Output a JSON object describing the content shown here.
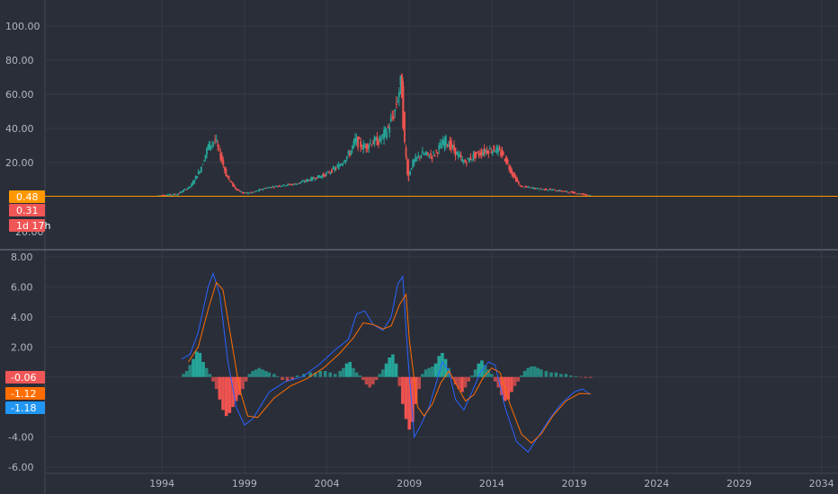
{
  "chart_data": [
    {
      "type": "candlestick",
      "ylim": [
        -5,
        110
      ],
      "y_ticks": [
        "100.00",
        "80.00",
        "60.00",
        "40.00",
        "20.00"
      ],
      "y_tick_values": [
        100,
        80,
        60,
        40,
        20
      ],
      "partial_tick": "20.00",
      "price_line": 0.48,
      "price_labels": [
        "0.48",
        "0.31",
        "1d 17h"
      ],
      "price_label_colors": [
        "#ff9800",
        "#f05656",
        "#f05656"
      ],
      "up_color": "#26a69a",
      "down_color": "#ef5350",
      "envelope": [
        [
          1993.8,
          0.6
        ],
        [
          1995.0,
          1.5
        ],
        [
          1995.8,
          6
        ],
        [
          1996.4,
          16
        ],
        [
          1996.9,
          30
        ],
        [
          1997.3,
          33
        ],
        [
          1997.7,
          22
        ],
        [
          1998.0,
          12
        ],
        [
          1998.5,
          5
        ],
        [
          1999.0,
          2
        ],
        [
          1999.6,
          2.5
        ],
        [
          2000.3,
          5
        ],
        [
          2001.2,
          6.5
        ],
        [
          2002.2,
          7.5
        ],
        [
          2003.0,
          10
        ],
        [
          2004.0,
          13
        ],
        [
          2004.8,
          18
        ],
        [
          2005.5,
          26
        ],
        [
          2005.8,
          33
        ],
        [
          2006.3,
          29
        ],
        [
          2006.8,
          32
        ],
        [
          2007.3,
          33
        ],
        [
          2007.8,
          40
        ],
        [
          2008.2,
          50
        ],
        [
          2008.5,
          64
        ],
        [
          2008.6,
          68
        ],
        [
          2008.8,
          30
        ],
        [
          2009.0,
          12
        ],
        [
          2009.3,
          20
        ],
        [
          2009.8,
          25
        ],
        [
          2010.5,
          24
        ],
        [
          2011.0,
          30
        ],
        [
          2011.3,
          33
        ],
        [
          2011.8,
          27
        ],
        [
          2012.4,
          20
        ],
        [
          2013.0,
          24
        ],
        [
          2013.7,
          27
        ],
        [
          2014.3,
          28
        ],
        [
          2014.8,
          24
        ],
        [
          2015.3,
          14
        ],
        [
          2015.8,
          6
        ],
        [
          2016.3,
          5.5
        ],
        [
          2017.0,
          4.5
        ],
        [
          2017.8,
          4
        ],
        [
          2018.5,
          3
        ],
        [
          2019.3,
          2
        ],
        [
          2020.0,
          0.8
        ]
      ]
    },
    {
      "type": "macd",
      "ylim": [
        -6.2,
        8.2
      ],
      "y_ticks": [
        "8.00",
        "6.00",
        "4.00",
        "2.00",
        "-4.00",
        "-6.00"
      ],
      "y_tick_values": [
        8,
        6,
        4,
        2,
        -4,
        -6
      ],
      "value_labels": [
        "-0.06",
        "-1.12",
        "-1.18"
      ],
      "value_label_colors": [
        "#f05656",
        "#ff6d00",
        "#2196f3"
      ],
      "series": [
        {
          "color": "#2962ff",
          "points": [
            [
              1995.2,
              1.2
            ],
            [
              1995.7,
              1.5
            ],
            [
              1996.2,
              3.0
            ],
            [
              1996.8,
              6.0
            ],
            [
              1997.1,
              6.9
            ],
            [
              1997.5,
              5.5
            ],
            [
              1998.0,
              1.0
            ],
            [
              1998.5,
              -2.0
            ],
            [
              1999.0,
              -3.2
            ],
            [
              1999.5,
              -2.8
            ],
            [
              2000.5,
              -1.0
            ],
            [
              2001.5,
              -0.3
            ],
            [
              2002.5,
              0.0
            ],
            [
              2003.5,
              0.8
            ],
            [
              2004.5,
              1.8
            ],
            [
              2005.3,
              2.5
            ],
            [
              2005.8,
              4.2
            ],
            [
              2006.3,
              4.4
            ],
            [
              2006.8,
              3.5
            ],
            [
              2007.4,
              3.1
            ],
            [
              2007.9,
              4.0
            ],
            [
              2008.3,
              6.2
            ],
            [
              2008.6,
              6.7
            ],
            [
              2008.9,
              1.5
            ],
            [
              2009.3,
              -4.0
            ],
            [
              2009.7,
              -3.2
            ],
            [
              2010.2,
              -2.0
            ],
            [
              2010.6,
              -0.5
            ],
            [
              2011.0,
              1.0
            ],
            [
              2011.4,
              0.4
            ],
            [
              2011.8,
              -1.5
            ],
            [
              2012.3,
              -2.2
            ],
            [
              2012.8,
              -1.0
            ],
            [
              2013.3,
              0.3
            ],
            [
              2013.8,
              1.0
            ],
            [
              2014.2,
              0.8
            ],
            [
              2014.8,
              -2.0
            ],
            [
              2015.5,
              -4.3
            ],
            [
              2016.2,
              -5.0
            ],
            [
              2016.8,
              -4.0
            ],
            [
              2017.5,
              -2.8
            ],
            [
              2018.2,
              -1.8
            ],
            [
              2019.0,
              -1.0
            ],
            [
              2019.5,
              -0.8
            ],
            [
              2020.0,
              -1.18
            ]
          ]
        },
        {
          "color": "#ff6d00",
          "points": [
            [
              1995.6,
              1.0
            ],
            [
              1996.2,
              2.0
            ],
            [
              1996.8,
              4.5
            ],
            [
              1997.3,
              6.3
            ],
            [
              1997.7,
              5.8
            ],
            [
              1998.2,
              2.5
            ],
            [
              1998.7,
              -0.8
            ],
            [
              1999.2,
              -2.6
            ],
            [
              1999.8,
              -2.7
            ],
            [
              2000.8,
              -1.4
            ],
            [
              2001.8,
              -0.6
            ],
            [
              2002.8,
              -0.1
            ],
            [
              2003.8,
              0.6
            ],
            [
              2004.8,
              1.6
            ],
            [
              2005.6,
              2.6
            ],
            [
              2006.2,
              3.6
            ],
            [
              2006.8,
              3.5
            ],
            [
              2007.4,
              3.2
            ],
            [
              2007.9,
              3.4
            ],
            [
              2008.4,
              4.8
            ],
            [
              2008.8,
              5.5
            ],
            [
              2009.0,
              2.5
            ],
            [
              2009.5,
              -2.0
            ],
            [
              2009.9,
              -2.6
            ],
            [
              2010.4,
              -1.8
            ],
            [
              2010.9,
              -0.4
            ],
            [
              2011.4,
              0.4
            ],
            [
              2011.9,
              -0.6
            ],
            [
              2012.4,
              -1.6
            ],
            [
              2012.9,
              -1.2
            ],
            [
              2013.5,
              0.0
            ],
            [
              2014.0,
              0.6
            ],
            [
              2014.5,
              0.3
            ],
            [
              2015.1,
              -1.8
            ],
            [
              2015.8,
              -3.8
            ],
            [
              2016.4,
              -4.4
            ],
            [
              2017.0,
              -3.8
            ],
            [
              2017.7,
              -2.6
            ],
            [
              2018.5,
              -1.6
            ],
            [
              2019.3,
              -1.1
            ],
            [
              2020.0,
              -1.12
            ]
          ]
        }
      ],
      "histogram": {
        "pos_color": "#26a69a",
        "neg_color": "#ef5350",
        "values": [
          [
            1995.3,
            0.2
          ],
          [
            1995.5,
            0.4
          ],
          [
            1995.7,
            0.8
          ],
          [
            1995.9,
            1.2
          ],
          [
            1996.1,
            1.7
          ],
          [
            1996.3,
            1.6
          ],
          [
            1996.5,
            1.0
          ],
          [
            1996.7,
            0.6
          ],
          [
            1996.9,
            0.2
          ],
          [
            1997.1,
            -0.3
          ],
          [
            1997.3,
            -0.8
          ],
          [
            1997.5,
            -1.5
          ],
          [
            1997.7,
            -2.2
          ],
          [
            1997.9,
            -2.6
          ],
          [
            1998.1,
            -2.4
          ],
          [
            1998.3,
            -2.0
          ],
          [
            1998.5,
            -1.6
          ],
          [
            1998.7,
            -1.2
          ],
          [
            1998.9,
            -0.8
          ],
          [
            1999.1,
            -0.3
          ],
          [
            1999.3,
            0.2
          ],
          [
            1999.5,
            0.4
          ],
          [
            1999.7,
            0.5
          ],
          [
            1999.9,
            0.6
          ],
          [
            2000.1,
            0.5
          ],
          [
            2000.3,
            0.4
          ],
          [
            2000.5,
            0.3
          ],
          [
            2000.8,
            0.2
          ],
          [
            2001.0,
            0.05
          ],
          [
            2001.3,
            -0.2
          ],
          [
            2001.6,
            -0.3
          ],
          [
            2001.9,
            -0.2
          ],
          [
            2002.2,
            0.1
          ],
          [
            2002.6,
            0.2
          ],
          [
            2003.0,
            0.3
          ],
          [
            2003.3,
            0.3
          ],
          [
            2003.6,
            0.4
          ],
          [
            2003.9,
            0.4
          ],
          [
            2004.2,
            0.3
          ],
          [
            2004.5,
            0.2
          ],
          [
            2004.8,
            0.4
          ],
          [
            2005.0,
            0.6
          ],
          [
            2005.2,
            0.9
          ],
          [
            2005.4,
            1.0
          ],
          [
            2005.6,
            0.6
          ],
          [
            2005.8,
            0.3
          ],
          [
            2006.0,
            0.1
          ],
          [
            2006.2,
            -0.2
          ],
          [
            2006.4,
            -0.5
          ],
          [
            2006.6,
            -0.7
          ],
          [
            2006.8,
            -0.5
          ],
          [
            2007.0,
            -0.2
          ],
          [
            2007.2,
            0.2
          ],
          [
            2007.4,
            0.5
          ],
          [
            2007.6,
            0.9
          ],
          [
            2007.8,
            1.3
          ],
          [
            2008.0,
            1.5
          ],
          [
            2008.2,
            0.9
          ],
          [
            2008.4,
            -0.6
          ],
          [
            2008.6,
            -1.8
          ],
          [
            2008.8,
            -2.8
          ],
          [
            2009.0,
            -3.5
          ],
          [
            2009.2,
            -3.0
          ],
          [
            2009.4,
            -1.8
          ],
          [
            2009.6,
            -0.8
          ],
          [
            2009.8,
            0.2
          ],
          [
            2010.0,
            0.5
          ],
          [
            2010.2,
            0.6
          ],
          [
            2010.4,
            0.7
          ],
          [
            2010.6,
            0.9
          ],
          [
            2010.8,
            1.4
          ],
          [
            2011.0,
            1.6
          ],
          [
            2011.2,
            1.2
          ],
          [
            2011.4,
            0.6
          ],
          [
            2011.6,
            -0.1
          ],
          [
            2011.8,
            -0.5
          ],
          [
            2012.0,
            -0.8
          ],
          [
            2012.2,
            -1.0
          ],
          [
            2012.4,
            -0.7
          ],
          [
            2012.6,
            -0.3
          ],
          [
            2012.8,
            0.1
          ],
          [
            2013.0,
            0.5
          ],
          [
            2013.2,
            0.9
          ],
          [
            2013.4,
            1.1
          ],
          [
            2013.6,
            0.8
          ],
          [
            2013.8,
            0.5
          ],
          [
            2014.0,
            0.2
          ],
          [
            2014.2,
            -0.3
          ],
          [
            2014.4,
            -0.7
          ],
          [
            2014.6,
            -1.2
          ],
          [
            2014.8,
            -1.6
          ],
          [
            2015.0,
            -1.5
          ],
          [
            2015.2,
            -1.0
          ],
          [
            2015.4,
            -0.6
          ],
          [
            2015.6,
            -0.3
          ],
          [
            2015.8,
            0.1
          ],
          [
            2016.0,
            0.4
          ],
          [
            2016.2,
            0.6
          ],
          [
            2016.4,
            0.7
          ],
          [
            2016.6,
            0.7
          ],
          [
            2016.8,
            0.6
          ],
          [
            2017.0,
            0.5
          ],
          [
            2017.3,
            0.4
          ],
          [
            2017.6,
            0.3
          ],
          [
            2017.9,
            0.3
          ],
          [
            2018.2,
            0.2
          ],
          [
            2018.5,
            0.2
          ],
          [
            2018.8,
            0.1
          ],
          [
            2019.1,
            0.05
          ],
          [
            2019.4,
            -0.03
          ],
          [
            2019.7,
            -0.06
          ],
          [
            2020.0,
            -0.06
          ]
        ]
      }
    }
  ],
  "x_axis": {
    "range": [
      1986.9,
      2035.0
    ],
    "ticks": [
      "1994",
      "1999",
      "2004",
      "2009",
      "2014",
      "2019",
      "2024",
      "2029",
      "2034"
    ],
    "tick_values": [
      1994,
      1999,
      2004,
      2009,
      2014,
      2019,
      2024,
      2029,
      2034
    ]
  },
  "colors": {
    "background": "#2a2e39",
    "grid": "#363a45",
    "axis_text": "#b2b5be",
    "pane_separator": "#787b86"
  }
}
